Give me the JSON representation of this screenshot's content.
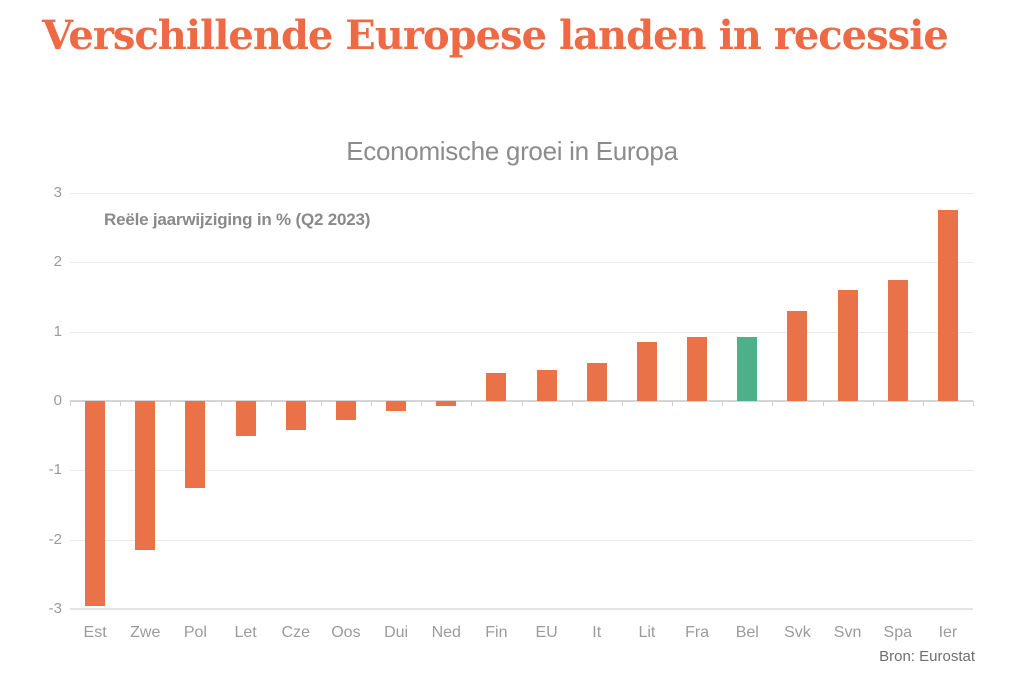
{
  "page": {
    "headline": "Verschillende Europese landen in recessie"
  },
  "chart_data": {
    "type": "bar",
    "title": "Economische groei in Europa",
    "annotation": "Reële jaarwijziging in % (Q2 2023)",
    "source": "Bron: Eurostat",
    "xlabel": "",
    "ylabel": "",
    "categories": [
      "Est",
      "Zwe",
      "Pol",
      "Let",
      "Cze",
      "Oos",
      "Dui",
      "Ned",
      "Fin",
      "EU",
      "It",
      "Lit",
      "Fra",
      "Bel",
      "Svk",
      "Svn",
      "Spa",
      "Ier"
    ],
    "values": [
      -2.95,
      -2.15,
      -1.25,
      -0.5,
      -0.42,
      -0.27,
      -0.15,
      -0.07,
      0.4,
      0.45,
      0.55,
      0.85,
      0.93,
      0.93,
      1.3,
      1.6,
      1.75,
      2.75
    ],
    "highlight_category": "Bel",
    "ylim": [
      -3,
      3
    ],
    "yticks": [
      3,
      2,
      1,
      0,
      -1,
      -2,
      -3
    ],
    "grid": true,
    "legend": "none",
    "colors": {
      "bar": "#E97249",
      "highlight": "#4DB08B",
      "headline": "#ED6A44",
      "title_text": "#8C8C8C",
      "annotation_text": "#8A8A8A",
      "axis_text": "#9B9B9B",
      "source_text": "#6F6F6F",
      "gridline": "#EBEBEB",
      "zero_line": "#D5D5D5",
      "base_line": "#E3E3E3"
    }
  }
}
